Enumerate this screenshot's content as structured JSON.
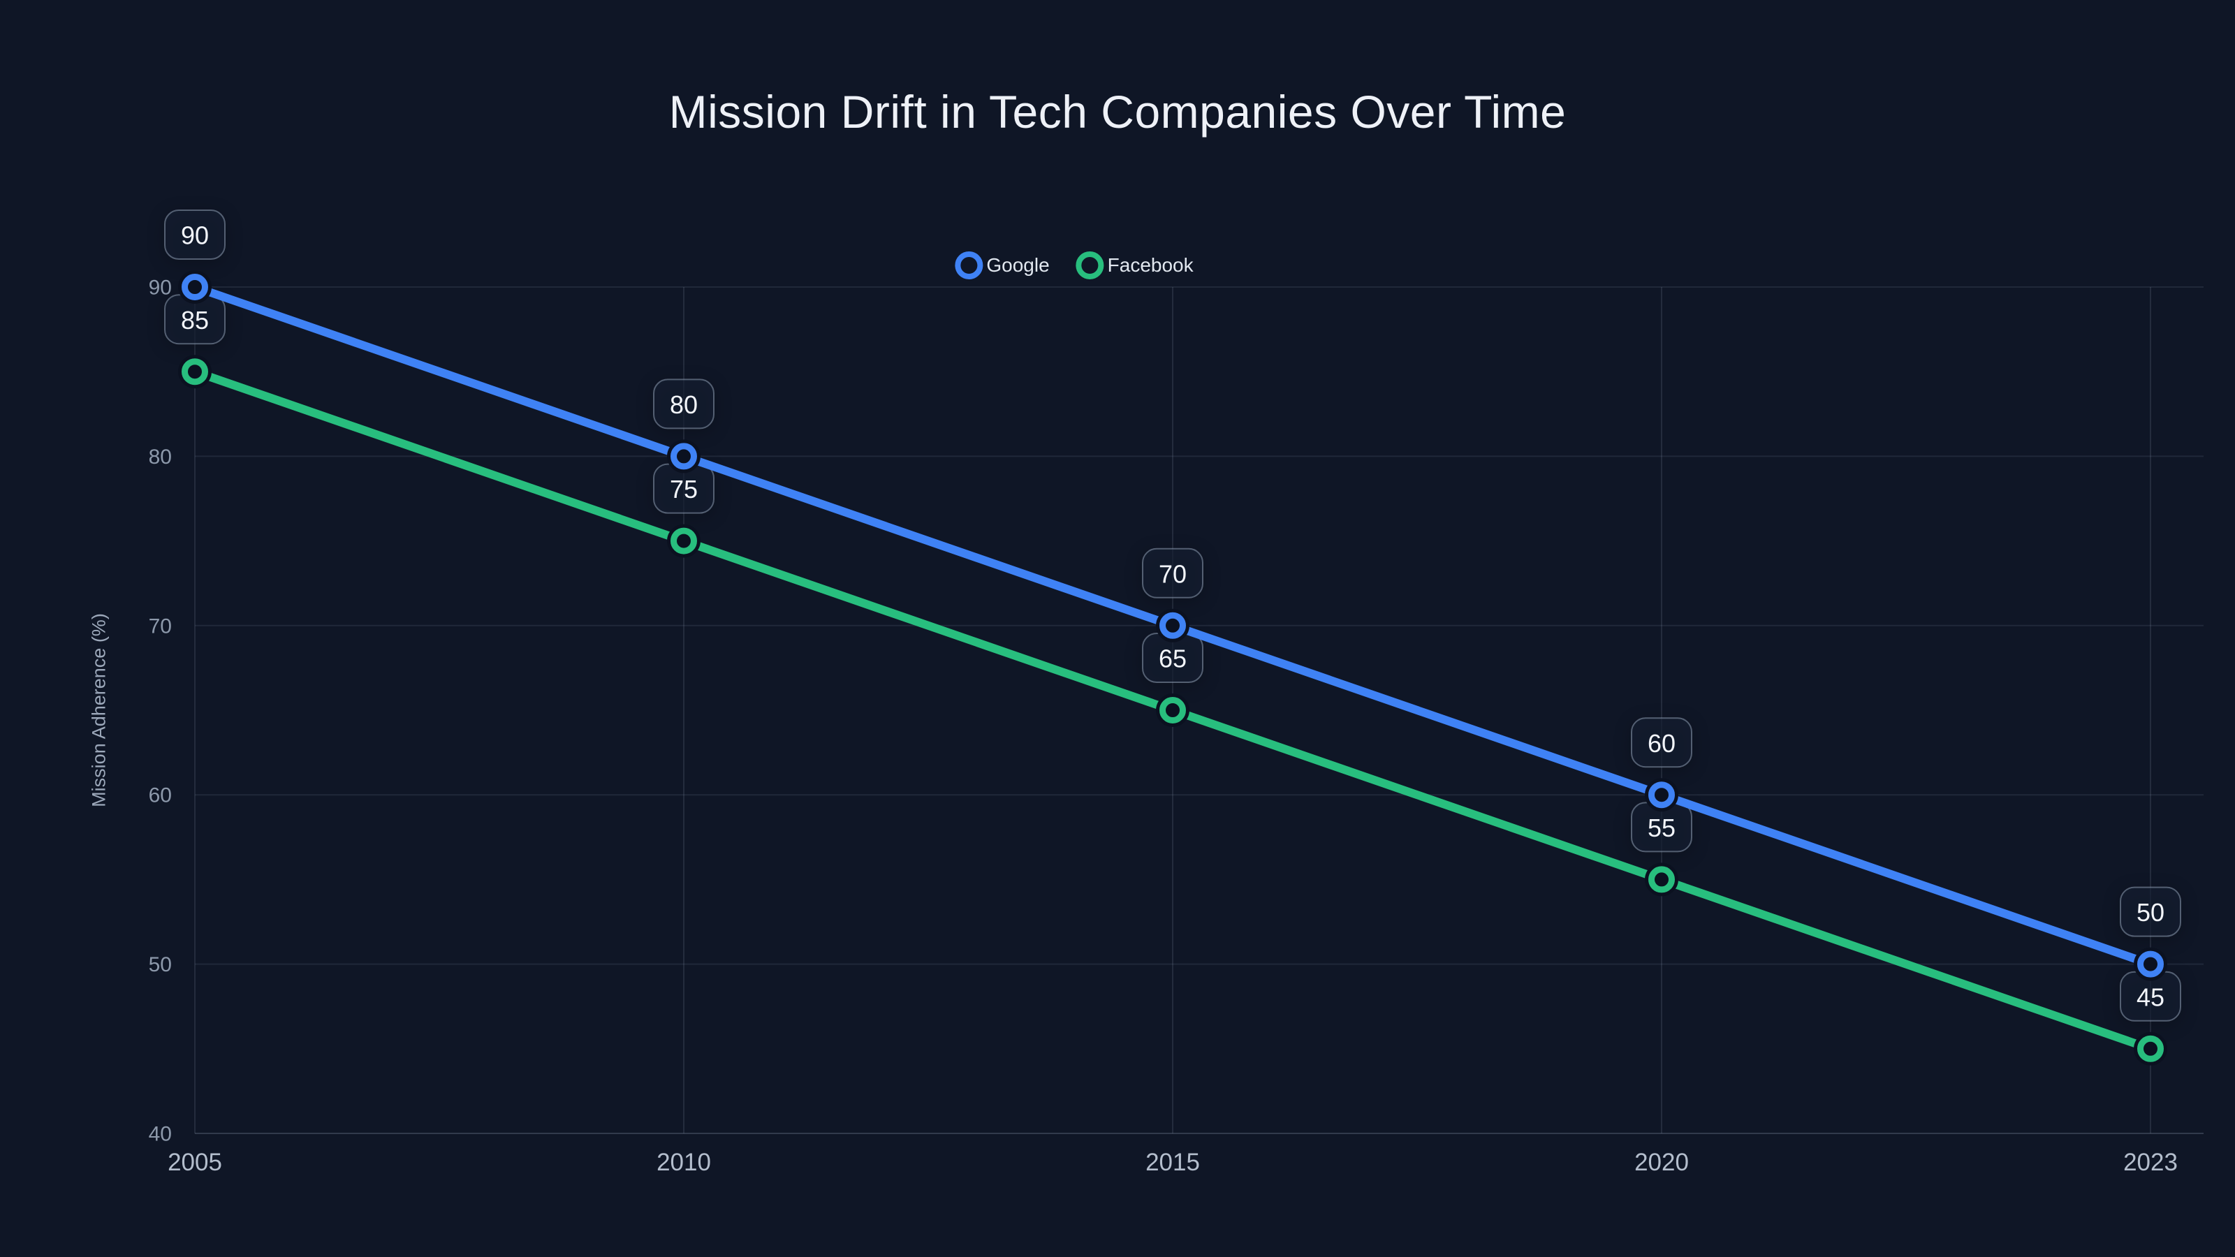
{
  "title": "Mission Drift in Tech Companies Over Time",
  "colors": {
    "background": "#0F1626",
    "google_blue": "#3F82F5",
    "facebook_green": "#28BE7E",
    "grid": "rgba(148,163,184,0.13)",
    "axis_line": "rgba(148,163,184,0.26)",
    "marker_fill": "#0B1120"
  },
  "chart_data": {
    "type": "line",
    "title": "Mission Drift in Tech Companies Over Time",
    "xlabel": "",
    "ylabel": "Mission Adherence (%)",
    "x": [
      "2005",
      "2010",
      "2015",
      "2020",
      "2023"
    ],
    "yticks": [
      40,
      50,
      60,
      70,
      80,
      90
    ],
    "ylim": [
      40,
      90
    ],
    "grid": true,
    "legend_position": "top-center",
    "markers": "open-circle",
    "point_labels": true,
    "series": [
      {
        "name": "Google",
        "color": "#3F82F5",
        "values": [
          90,
          80,
          70,
          60,
          50
        ]
      },
      {
        "name": "Facebook",
        "color": "#28BE7E",
        "values": [
          85,
          75,
          65,
          55,
          45
        ]
      }
    ]
  }
}
